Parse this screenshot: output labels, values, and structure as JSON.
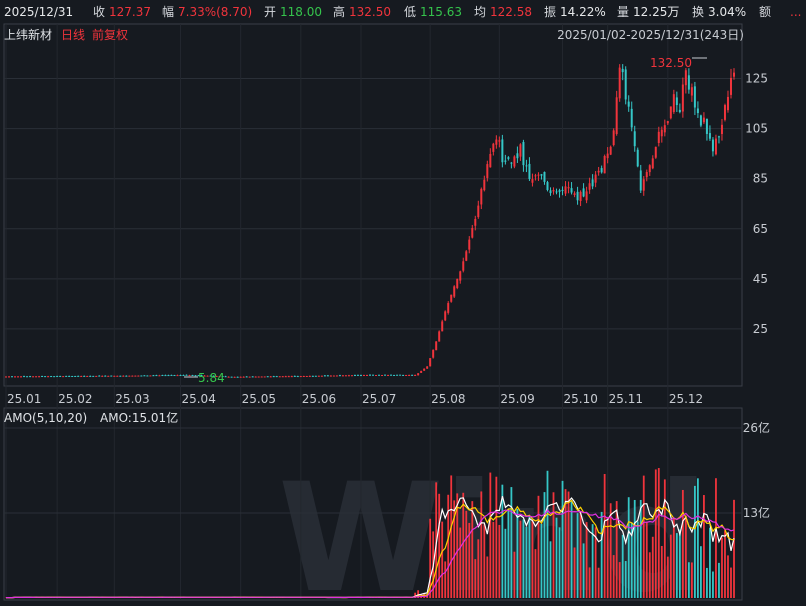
{
  "header": {
    "date": "2025/12/31",
    "close_label": "收",
    "close": "127.37",
    "change_label": "幅",
    "change": "7.33%(8.70)",
    "open_label": "开",
    "open": "118.00",
    "high_label": "高",
    "high": "132.50",
    "low_label": "低",
    "low": "115.63",
    "avg_label": "均",
    "avg": "122.58",
    "amp_label": "振",
    "amp": "14.22%",
    "vol_label": "量",
    "vol": "12.25万",
    "turn_label": "换",
    "turn": "3.04%",
    "amt_label": "额",
    "more": "..."
  },
  "sub": {
    "name": "上纬新材",
    "period": "日线",
    "adjust": "前复权",
    "range": "2025/01/02-2025/12/31(243日)"
  },
  "price_annotations": {
    "high": "132.50",
    "low": "5.84"
  },
  "amo": {
    "label": "AMO(5,10,20)",
    "value": "AMO:15.01亿"
  },
  "watermark": "Wind",
  "colors": {
    "up": "#f0343c",
    "down": "#35c7c7",
    "ma5": "#ffffff",
    "ma10": "#ffd200",
    "ma20": "#e030e0"
  },
  "chart_data": [
    {
      "type": "candlestick",
      "title": "",
      "x_ticks": [
        "25.01",
        "25.02",
        "25.03",
        "25.04",
        "25.05",
        "25.06",
        "25.07",
        "25.08",
        "25.09",
        "25.10",
        "25.11",
        "25.12"
      ],
      "y_ticks": [
        25,
        45,
        65,
        85,
        105,
        125
      ],
      "ylim": [
        3,
        138
      ],
      "grid": true,
      "keyframes": [
        [
          0,
          6.0
        ],
        [
          40,
          6.3
        ],
        [
          60,
          6.6
        ],
        [
          70,
          6.2
        ],
        [
          75,
          5.84
        ],
        [
          85,
          6.0
        ],
        [
          100,
          6.2
        ],
        [
          120,
          6.6
        ],
        [
          136,
          6.6
        ],
        [
          137,
          7.3
        ],
        [
          140,
          10
        ],
        [
          143,
          20
        ],
        [
          146,
          32
        ],
        [
          149,
          42
        ],
        [
          151,
          48
        ],
        [
          153,
          56
        ],
        [
          156,
          70
        ],
        [
          159,
          84
        ],
        [
          161,
          95
        ],
        [
          163,
          103
        ],
        [
          165,
          92
        ],
        [
          168,
          90
        ],
        [
          171,
          96
        ],
        [
          174,
          86
        ],
        [
          178,
          85
        ],
        [
          182,
          80
        ],
        [
          185,
          82
        ],
        [
          189,
          77
        ],
        [
          193,
          80
        ],
        [
          197,
          86
        ],
        [
          200,
          96
        ],
        [
          202,
          105
        ],
        [
          204,
          131
        ],
        [
          206,
          118
        ],
        [
          208,
          103
        ],
        [
          211,
          82
        ],
        [
          214,
          88
        ],
        [
          217,
          104
        ],
        [
          220,
          110
        ],
        [
          222,
          117
        ],
        [
          224,
          115
        ],
        [
          226,
          125
        ],
        [
          228,
          119
        ],
        [
          230,
          109
        ],
        [
          233,
          106
        ],
        [
          235,
          96
        ],
        [
          237,
          103
        ],
        [
          239,
          112
        ],
        [
          241,
          128
        ],
        [
          242,
          127.37
        ]
      ]
    },
    {
      "type": "bar",
      "title": "AMO(5,10,20)",
      "unit": "亿",
      "y_ticks": [
        13,
        26
      ],
      "ylim": [
        0,
        26
      ],
      "last_value": 15.01
    }
  ]
}
